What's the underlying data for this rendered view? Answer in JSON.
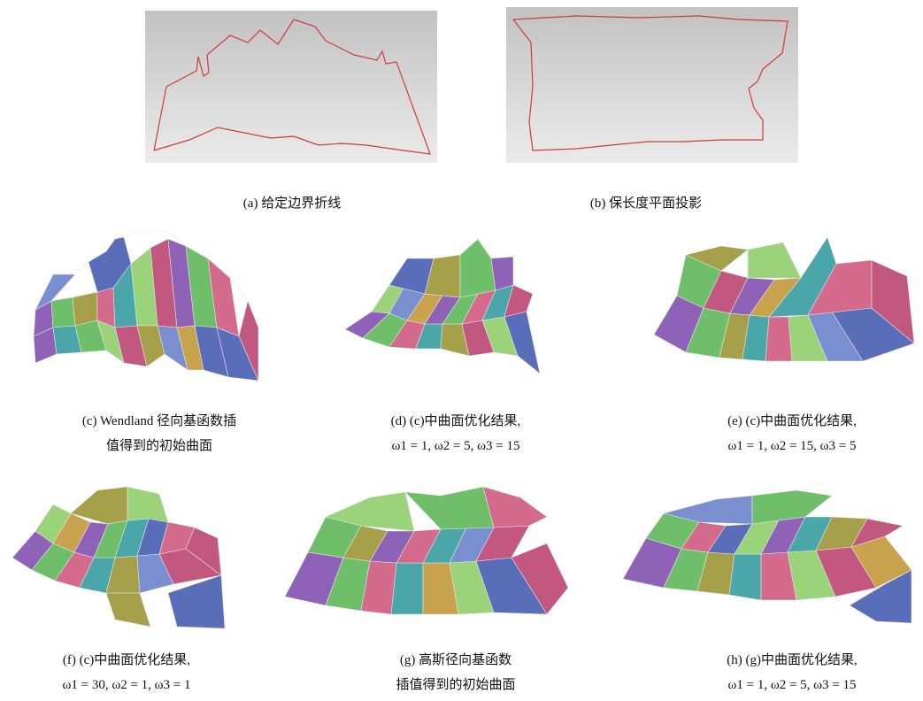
{
  "figure": {
    "panels": [
      {
        "id": "a",
        "caption": [
          "(a) 给定边界折线"
        ]
      },
      {
        "id": "b",
        "caption": [
          "(b) 保长度平面投影"
        ]
      },
      {
        "id": "c",
        "caption": [
          "(c) Wendland 径向基函数插",
          "值得到的初始曲面"
        ]
      },
      {
        "id": "d",
        "caption": [
          "(d) (c)中曲面优化结果,",
          "ω1 = 1, ω2 = 5, ω3 = 15"
        ]
      },
      {
        "id": "e",
        "caption": [
          "(e) (c)中曲面优化结果,",
          "ω1 = 1, ω2 = 15, ω3 = 5"
        ]
      },
      {
        "id": "f",
        "caption": [
          "(f) (c)中曲面优化结果,",
          "ω1 = 30, ω2 = 1, ω3 = 1"
        ]
      },
      {
        "id": "g",
        "caption": [
          "(g)  高斯径向基函数",
          "插值得到的初始曲面"
        ]
      },
      {
        "id": "h",
        "caption": [
          "(h) (g)中曲面优化结果,",
          "ω1 = 1, ω2 = 5, ω3 = 15"
        ]
      }
    ],
    "colors": {
      "boundary_line": "#d23a3a",
      "panel_bg_top": "#c4c4c4",
      "panel_bg_bottom": "#ececec",
      "patch_palette": [
        "#8e63b7",
        "#6fbf6a",
        "#d46a8c",
        "#4aa6a8",
        "#a7a04a",
        "#5a6db8",
        "#c9a24e",
        "#9ad37a",
        "#c2577f",
        "#7a8fd0"
      ]
    }
  }
}
